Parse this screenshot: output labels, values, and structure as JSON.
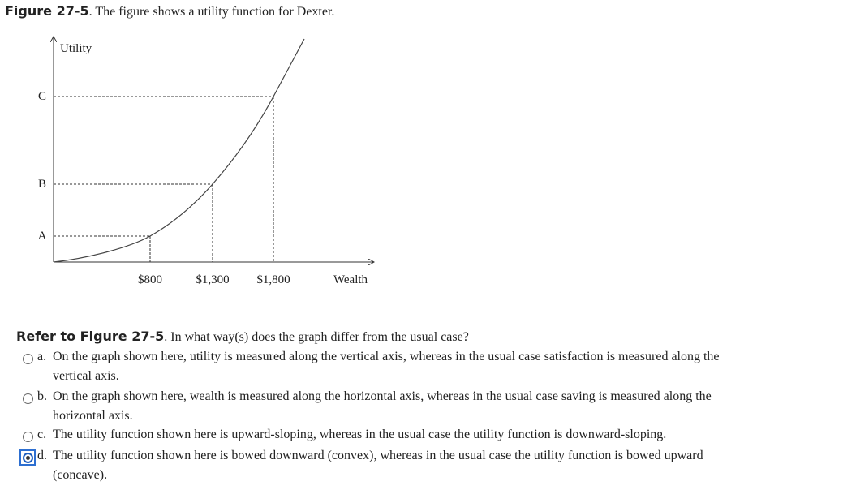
{
  "caption": {
    "label": "Figure 27-5",
    "text": ". The figure shows a utility function for Dexter."
  },
  "figure": {
    "y_axis_label": "Utility",
    "y_labels": [
      "C",
      "B",
      "A"
    ],
    "x_labels": [
      "$800",
      "$1,300",
      "$1,800"
    ],
    "x_axis_label": "Wealth"
  },
  "question": {
    "ref": "Refer to Figure 27-5",
    "text": ". In what way(s) does the graph differ from the usual case?",
    "options": [
      {
        "letter": "a.",
        "lines": [
          "On the graph shown here, utility is measured along the vertical axis, whereas in the usual case satisfaction is measured along the",
          "vertical axis."
        ],
        "selected": false
      },
      {
        "letter": "b.",
        "lines": [
          "On the graph shown here, wealth is measured along the horizontal axis, whereas in the usual case saving is measured along the",
          "horizontal axis."
        ],
        "selected": false
      },
      {
        "letter": "c.",
        "lines": [
          "The utility function shown here is upward-sloping, whereas in the usual case the utility function is downward-sloping."
        ],
        "selected": false
      },
      {
        "letter": "d.",
        "lines": [
          "The utility function shown here is bowed downward (convex), whereas in the usual case the utility function is bowed upward",
          "(concave)."
        ],
        "selected": true
      }
    ]
  }
}
